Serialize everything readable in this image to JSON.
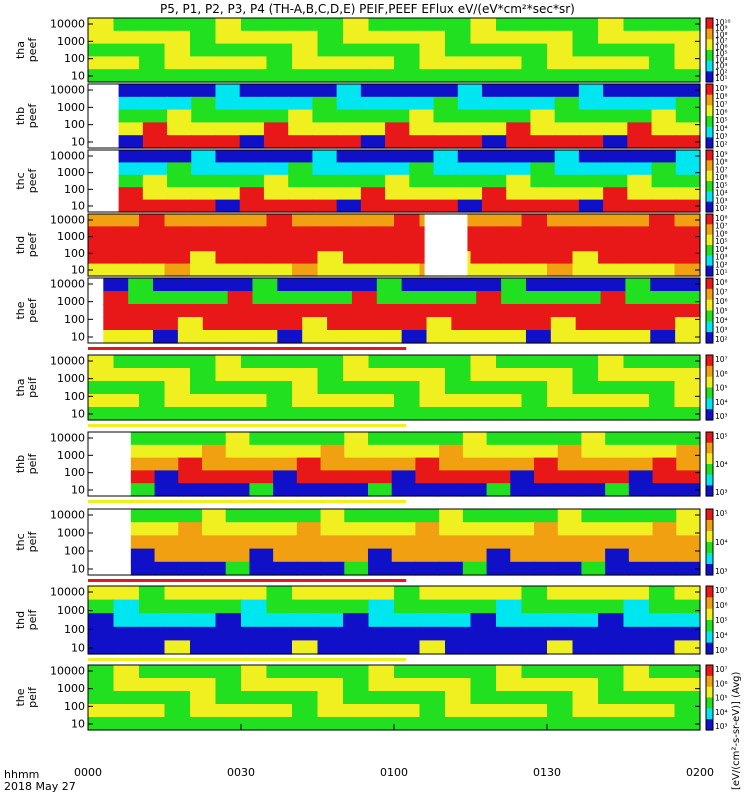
{
  "title": "P5, P1, P2, P3, P4 (TH-A,B,C,D,E) PEIF,PEEF EFlux eV/(eV*cm²*sec*sr)",
  "time_axis": {
    "row_label": "hhmm",
    "date_label": "2018 May 27",
    "ticks": [
      "0000",
      "0030",
      "0100",
      "0130",
      "0200"
    ]
  },
  "colorbar_label": "[eV/(cm²-s-sr-eV)] (Avg)",
  "palette": {
    "blue": "#1010c8",
    "cyan": "#00e6f0",
    "green": "#20e020",
    "yellow": "#f0f020",
    "orange": "#f0a010",
    "red": "#e81818",
    "black": "#000000"
  },
  "chart_data": [
    {
      "type": "heatmap",
      "panel_label": [
        "tha",
        "peef"
      ],
      "yticks": [
        "10000",
        "1000",
        "100",
        "10"
      ],
      "cbar_ticks": [
        "10¹⁰",
        "10⁹",
        "10⁸",
        "10⁷",
        "10⁶",
        "10⁵",
        "10⁴",
        "10³",
        "10²",
        "10¹"
      ],
      "data_start_frac": 0,
      "dominant": "yellow-green"
    },
    {
      "type": "heatmap",
      "panel_label": [
        "thb",
        "peef"
      ],
      "yticks": [
        "10000",
        "1000",
        "100",
        "10"
      ],
      "cbar_ticks": [
        "10⁹",
        "10⁸",
        "10⁷",
        "10⁶",
        "10⁵",
        "10⁴",
        "10³",
        "10²"
      ],
      "data_start_frac": 0.05,
      "dominant": "blue-green with red low-energy band"
    },
    {
      "type": "heatmap",
      "panel_label": [
        "thc",
        "peef"
      ],
      "yticks": [
        "10000",
        "1000",
        "100",
        "10"
      ],
      "cbar_ticks": [
        "10⁹",
        "10⁸",
        "10⁷",
        "10⁶",
        "10⁵",
        "10⁴",
        "10³",
        "10²"
      ],
      "data_start_frac": 0.05,
      "dominant": "blue-green with red low-energy band"
    },
    {
      "type": "heatmap",
      "panel_label": [
        "thd",
        "peef"
      ],
      "yticks": [
        "10000",
        "1000",
        "100",
        "10"
      ],
      "cbar_ticks": [
        "10⁸",
        "10⁷",
        "10⁶",
        "10⁵",
        "10⁴",
        "10³",
        "10²",
        "10¹"
      ],
      "data_start_frac": 0,
      "dominant": "red then yellow-green",
      "gap": [
        0.55,
        0.62
      ]
    },
    {
      "type": "heatmap",
      "panel_label": [
        "the",
        "peef"
      ],
      "yticks": [
        "10000",
        "1000",
        "100",
        "10"
      ],
      "cbar_ticks": [
        "10⁸",
        "10⁷",
        "10⁶",
        "10⁵",
        "10⁴",
        "10³",
        "10²"
      ],
      "data_start_frac": 0.025,
      "dominant": "red core band"
    },
    {
      "type": "heatmap",
      "panel_label": [
        "tha",
        "peif"
      ],
      "yticks": [
        "10000",
        "1000",
        "100",
        "10"
      ],
      "cbar_ticks": [
        "10⁷",
        "10⁶",
        "10⁵",
        "10⁴",
        "10³"
      ],
      "data_start_frac": 0,
      "dominant": "yellow-green"
    },
    {
      "type": "heatmap",
      "panel_label": [
        "thb",
        "peif"
      ],
      "yticks": [
        "10000",
        "1000",
        "100",
        "10"
      ],
      "cbar_ticks": [
        "10⁵",
        "10⁴",
        "10³"
      ],
      "data_start_frac": 0.07,
      "dominant": "green-yellow with red band"
    },
    {
      "type": "heatmap",
      "panel_label": [
        "thc",
        "peif"
      ],
      "yticks": [
        "10000",
        "1000",
        "100",
        "10"
      ],
      "cbar_ticks": [
        "10⁵",
        "10⁴",
        "10³"
      ],
      "data_start_frac": 0.07,
      "dominant": "green-orange"
    },
    {
      "type": "heatmap",
      "panel_label": [
        "thd",
        "peif"
      ],
      "yticks": [
        "10000",
        "1000",
        "100",
        "10"
      ],
      "cbar_ticks": [
        "10⁷",
        "10⁶",
        "10⁵",
        "10⁴",
        "10³"
      ],
      "data_start_frac": 0,
      "dominant": "blue-green low, yellow high"
    },
    {
      "type": "heatmap",
      "panel_label": [
        "the",
        "peif"
      ],
      "yticks": [
        "10000",
        "1000",
        "100",
        "10"
      ],
      "cbar_ticks": [
        "10⁷",
        "10⁶",
        "10⁵",
        "10⁴",
        "10³"
      ],
      "data_start_frac": 0,
      "dominant": "yellow-green"
    }
  ]
}
